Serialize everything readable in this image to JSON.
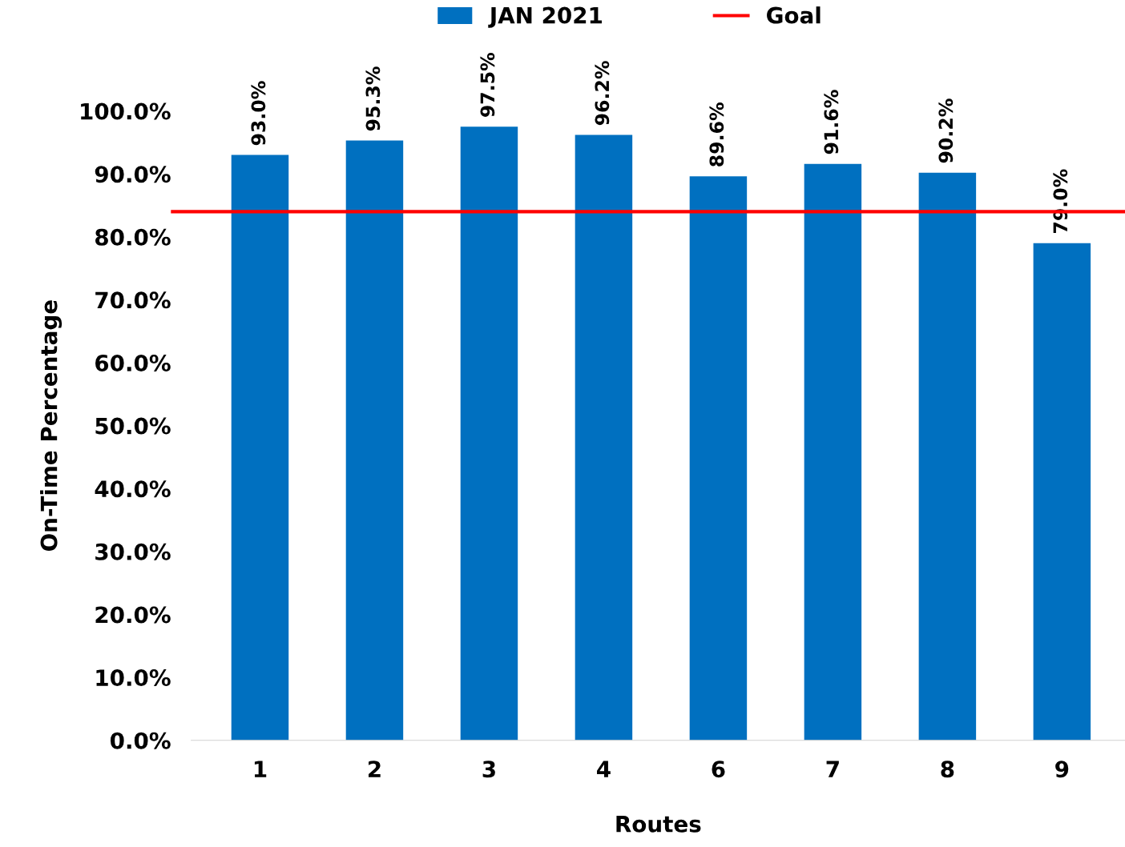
{
  "chart_data": {
    "type": "bar",
    "xlabel": "Routes",
    "ylabel": "On-Time Percentage",
    "categories": [
      "1",
      "2",
      "3",
      "4",
      "6",
      "7",
      "8",
      "9"
    ],
    "series": [
      {
        "name": "JAN 2021",
        "color": "#0070c0",
        "values": [
          93.0,
          95.3,
          97.5,
          96.2,
          89.6,
          91.6,
          90.2,
          79.0
        ],
        "value_labels": [
          "93.0%",
          "95.3%",
          "97.5%",
          "96.2%",
          "89.6%",
          "91.6%",
          "90.2%",
          "79.0%"
        ]
      }
    ],
    "ref_lines": [
      {
        "axis": "y",
        "value": 84,
        "label": "Goal",
        "color": "#ff0000",
        "line_style": "solid"
      }
    ],
    "ylim": [
      0,
      100
    ],
    "yticks": [
      {
        "value": 0,
        "label": "0.0%"
      },
      {
        "value": 10,
        "label": "10.0%"
      },
      {
        "value": 20,
        "label": "20.0%"
      },
      {
        "value": 30,
        "label": "30.0%"
      },
      {
        "value": 40,
        "label": "40.0%"
      },
      {
        "value": 50,
        "label": "50.0%"
      },
      {
        "value": 60,
        "label": "60.0%"
      },
      {
        "value": 70,
        "label": "70.0%"
      },
      {
        "value": 80,
        "label": "80.0%"
      },
      {
        "value": 90,
        "label": "90.0%"
      },
      {
        "value": 100,
        "label": "100.0%"
      }
    ],
    "grid": false,
    "legend": "top"
  }
}
